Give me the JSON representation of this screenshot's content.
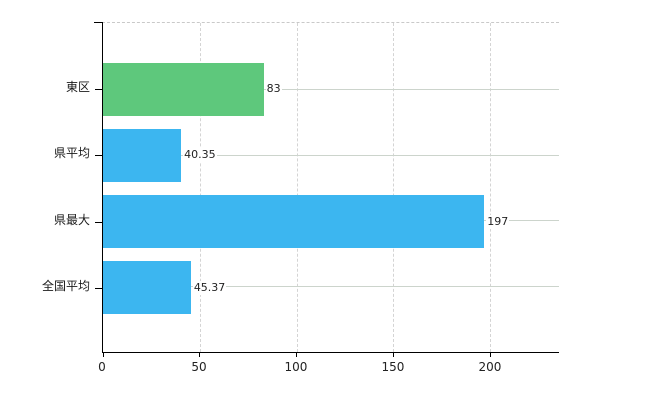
{
  "chart_data": {
    "type": "bar",
    "orientation": "horizontal",
    "title": "",
    "xlabel": "",
    "ylabel": "",
    "categories": [
      "東区",
      "県平均",
      "県最大",
      "全国平均"
    ],
    "values": [
      83,
      40.35,
      197,
      45.37
    ],
    "value_labels": [
      "83",
      "40.35",
      "197",
      "45.37"
    ],
    "bar_colors": [
      "#5ec87c",
      "#3cb6f0",
      "#3cb6f0",
      "#3cb6f0"
    ],
    "x_ticks": [
      0,
      50,
      100,
      150,
      200
    ],
    "x_tick_labels": [
      "0",
      "50",
      "100",
      "150",
      "200"
    ],
    "xlim": [
      0,
      235.6
    ],
    "grid": {
      "vertical": "dashed",
      "horizontal": "solid",
      "top_border": "dashed"
    },
    "legend": "none",
    "colors": {
      "axis": "#000000",
      "vertical_grid": "#d4d4d4",
      "horizontal_grid": "#ccd4cc",
      "text": "#222222",
      "background": "#ffffff"
    }
  }
}
